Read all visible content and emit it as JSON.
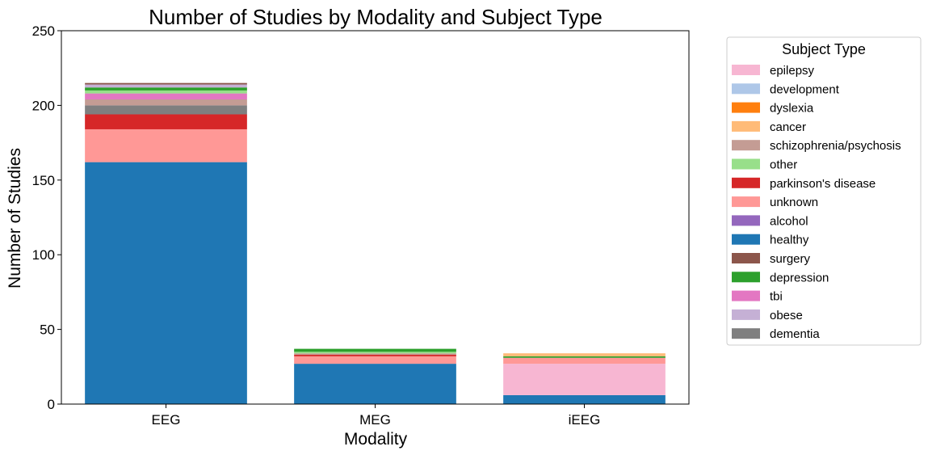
{
  "chart_data": {
    "type": "bar",
    "stacked": true,
    "title": "Number of Studies by Modality and Subject Type",
    "xlabel": "Modality",
    "ylabel": "Number of Studies",
    "ylim": [
      0,
      250
    ],
    "yticks": [
      0,
      50,
      100,
      150,
      200,
      250
    ],
    "grid": false,
    "categories": [
      "EEG",
      "MEG",
      "iEEG"
    ],
    "legend": {
      "title": "Subject Type",
      "placement": "outside-right"
    },
    "series": [
      {
        "name": "epilepsy",
        "color": "#f7b6d2",
        "values": [
          0,
          0,
          21
        ]
      },
      {
        "name": "development",
        "color": "#aec7e8",
        "values": [
          0,
          0,
          0
        ]
      },
      {
        "name": "dyslexia",
        "color": "#ff7f0e",
        "values": [
          0,
          0,
          0
        ]
      },
      {
        "name": "cancer",
        "color": "#ffbb78",
        "values": [
          0,
          0,
          2
        ]
      },
      {
        "name": "schizophrenia/psychosis",
        "color": "#c49c94",
        "values": [
          4,
          1,
          0
        ]
      },
      {
        "name": "other",
        "color": "#98df8a",
        "values": [
          2,
          1,
          0
        ]
      },
      {
        "name": "parkinson's disease",
        "color": "#d62728",
        "values": [
          10,
          1,
          0
        ]
      },
      {
        "name": "unknown",
        "color": "#ff9896",
        "values": [
          22,
          5,
          4
        ]
      },
      {
        "name": "alcohol",
        "color": "#9467bd",
        "values": [
          0,
          0,
          0
        ]
      },
      {
        "name": "healthy",
        "color": "#1f77b4",
        "values": [
          162,
          27,
          6
        ]
      },
      {
        "name": "surgery",
        "color": "#8c564b",
        "values": [
          1,
          0,
          0
        ]
      },
      {
        "name": "depression",
        "color": "#2ca02c",
        "values": [
          2,
          2,
          1
        ]
      },
      {
        "name": "tbi",
        "color": "#e377c2",
        "values": [
          4,
          0,
          0
        ]
      },
      {
        "name": "obese",
        "color": "#c5b0d5",
        "values": [
          2,
          0,
          0
        ]
      },
      {
        "name": "dementia",
        "color": "#7f7f7f",
        "values": [
          6,
          0,
          0
        ]
      }
    ],
    "stack_order": [
      "healthy",
      "epilepsy",
      "unknown",
      "parkinson's disease",
      "dementia",
      "schizophrenia/psychosis",
      "tbi",
      "other",
      "depression",
      "obese",
      "surgery",
      "cancer"
    ]
  }
}
